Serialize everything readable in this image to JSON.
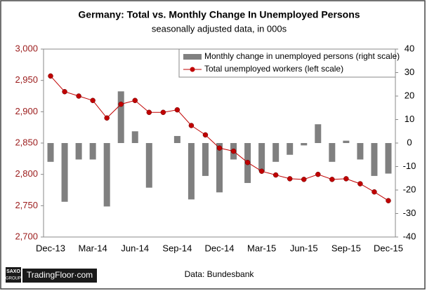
{
  "chart_data": {
    "type": "bar-line",
    "title": "Germany: Total vs. Monthly Change In Unemployed Persons",
    "subtitle": "seasonally adjusted data, in 000s",
    "source": "Data: Bundesbank",
    "brand": "TradingFloor·com",
    "brand_mark": [
      "SAXO",
      "GROUP"
    ],
    "categories": [
      "Dec-13",
      null,
      null,
      "Mar-14",
      null,
      null,
      "Jun-14",
      null,
      null,
      "Sep-14",
      null,
      null,
      "Dec-14",
      null,
      null,
      "Mar-15",
      null,
      null,
      "Jun-15",
      null,
      null,
      "Sep-15",
      null,
      null,
      "Dec-15"
    ],
    "series": [
      {
        "name": "Monthly change in unemployed persons (right scale)",
        "type": "bar",
        "axis": "y2",
        "color": "#808080",
        "values": [
          -8,
          -25,
          -7,
          -7,
          -27,
          22,
          5,
          -19,
          0,
          3,
          -24,
          -14,
          -21,
          -7,
          -17,
          -12,
          -8,
          -5,
          -1,
          8,
          -8,
          1,
          -7,
          -14,
          -13
        ]
      },
      {
        "name": "Total unemployed workers (left scale)",
        "type": "line",
        "color": "#c00000",
        "values": [
          2957,
          2932,
          2925,
          2918,
          2890,
          2912,
          2918,
          2899,
          2899,
          2903,
          2878,
          2863,
          2842,
          2837,
          2819,
          2805,
          2799,
          2793,
          2792,
          2800,
          2792,
          2793,
          2785,
          2772,
          2758
        ]
      }
    ],
    "ylim": [
      2700,
      3000
    ],
    "yticks": [
      {
        "value": 2700,
        "label": "2,700"
      },
      {
        "value": 2750,
        "label": "2,750"
      },
      {
        "value": 2800,
        "label": "2,800"
      },
      {
        "value": 2850,
        "label": "2,850"
      },
      {
        "value": 2900,
        "label": "2,900"
      },
      {
        "value": 2950,
        "label": "2,950"
      },
      {
        "value": 3000,
        "label": "3,000"
      }
    ],
    "y2lim": [
      -40,
      40
    ],
    "y2ticks": [
      -40,
      -30,
      -20,
      -10,
      0,
      10,
      20,
      30,
      40
    ],
    "left_axis_color": "#9b1b1b",
    "legend": "top-right"
  }
}
